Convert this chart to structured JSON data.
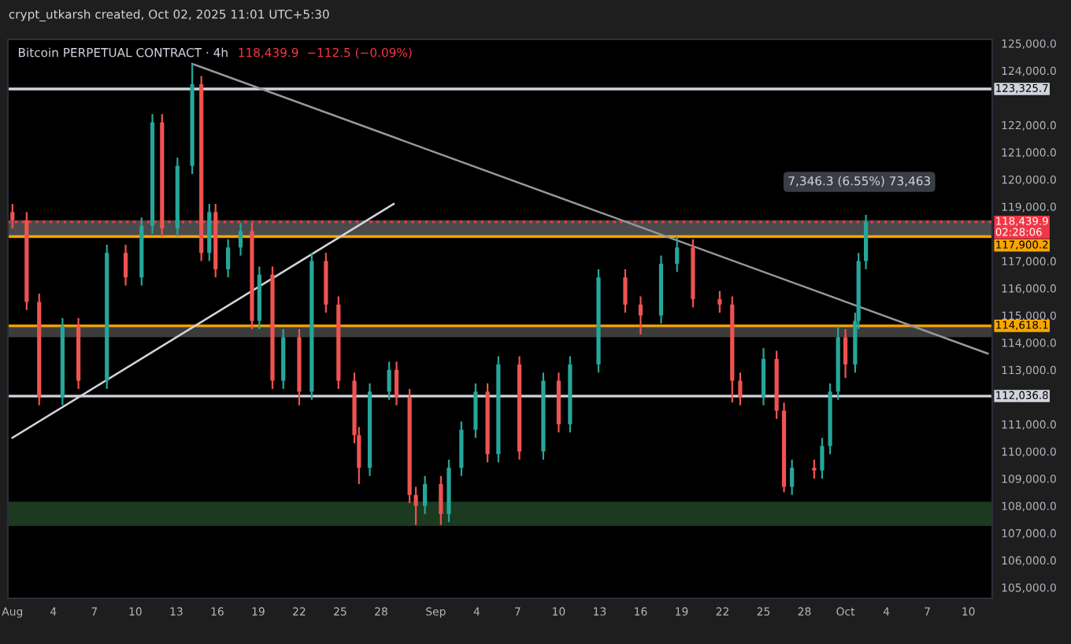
{
  "chart_data": {
    "type": "candlestick",
    "title": "Bitcoin PERPETUAL CONTRACT · 4h",
    "subtitle": "118,439.9  −112.5 (−0.09%)",
    "x": [
      "2025-08-01T00:00",
      "2025-08-02T01:00",
      "2025-08-02T23:00",
      "2025-08-04T16:00",
      "2025-08-05T20:00",
      "2025-08-07T22:00",
      "2025-08-09T07:00",
      "2025-08-10T11:00",
      "2025-08-11T06:00",
      "2025-08-11T23:00",
      "2025-08-13T02:00",
      "2025-08-14T04:00",
      "2025-08-14T20:00",
      "2025-08-15T10:00",
      "2025-08-15T21:00",
      "2025-08-16T19:00",
      "2025-08-17T17:00",
      "2025-08-18T13:00",
      "2025-08-19T02:00",
      "2025-08-20T01:00",
      "2025-08-20T20:00",
      "2025-08-22T00:00",
      "2025-08-22T22:00",
      "2025-08-23T23:00",
      "2025-08-24T21:00",
      "2025-08-26T01:00",
      "2025-08-26T09:00",
      "2025-08-27T04:00",
      "2025-08-28T14:00",
      "2025-08-29T03:00",
      "2025-08-30T02:00",
      "2025-08-30T13:00",
      "2025-08-31T05:00",
      "2025-09-01T09:00",
      "2025-09-01T23:00",
      "2025-09-02T21:00",
      "2025-09-03T22:00",
      "2025-09-04T19:00",
      "2025-09-05T14:00",
      "2025-09-07T03:00",
      "2025-09-08T21:00",
      "2025-09-10T00:00",
      "2025-09-10T20:00",
      "2025-09-12T22:00",
      "2025-09-14T21:00",
      "2025-09-16T00:00",
      "2025-09-17T12:00",
      "2025-09-18T16:00",
      "2025-09-19T20:00",
      "2025-09-21T19:00",
      "2025-09-22T17:00",
      "2025-09-23T07:00",
      "2025-09-25T00:00",
      "2025-09-25T23:00",
      "2025-09-26T12:00",
      "2025-09-27T02:00",
      "2025-09-28T17:00",
      "2025-09-29T07:00",
      "2025-09-29T21:00",
      "2025-09-30T11:00",
      "2025-10-01T00:00",
      "2025-10-01T17:00",
      "2025-10-01T23:00",
      "2025-10-02T12:00"
    ],
    "ohlc": [
      [
        118800,
        119100,
        118200,
        118500
      ],
      [
        118500,
        118800,
        115200,
        115500
      ],
      [
        115500,
        115800,
        111700,
        112000
      ],
      [
        112000,
        114900,
        111700,
        114600
      ],
      [
        114600,
        114900,
        112300,
        112600
      ],
      [
        112600,
        117600,
        112300,
        117300
      ],
      [
        117300,
        117600,
        116100,
        116400
      ],
      [
        116400,
        118600,
        116100,
        118300
      ],
      [
        118300,
        122400,
        118000,
        122100
      ],
      [
        122100,
        122400,
        117900,
        118200
      ],
      [
        118200,
        120800,
        117900,
        120500
      ],
      [
        120500,
        124250,
        120200,
        123500
      ],
      [
        123500,
        123800,
        117000,
        117300
      ],
      [
        117300,
        119100,
        117000,
        118800
      ],
      [
        118800,
        119100,
        116400,
        116700
      ],
      [
        116700,
        117800,
        116400,
        117500
      ],
      [
        117500,
        118400,
        117200,
        118100
      ],
      [
        118100,
        118400,
        114500,
        114800
      ],
      [
        114800,
        116800,
        114500,
        116500
      ],
      [
        116500,
        116800,
        112300,
        112600
      ],
      [
        112600,
        114500,
        112300,
        114200
      ],
      [
        114200,
        114500,
        111700,
        112200
      ],
      [
        112200,
        117300,
        111900,
        117000
      ],
      [
        117000,
        117300,
        115100,
        115400
      ],
      [
        115400,
        115700,
        112300,
        112600
      ],
      [
        112600,
        112900,
        110300,
        110600
      ],
      [
        110600,
        110900,
        108800,
        109400
      ],
      [
        109400,
        112500,
        109100,
        112200
      ],
      [
        112200,
        113300,
        111900,
        113000
      ],
      [
        113000,
        113300,
        111700,
        112000
      ],
      [
        112000,
        112300,
        108100,
        108400
      ],
      [
        108400,
        108700,
        107300,
        108000
      ],
      [
        108000,
        109100,
        107700,
        108800
      ],
      [
        108800,
        109100,
        107300,
        107700
      ],
      [
        107700,
        109700,
        107400,
        109400
      ],
      [
        109400,
        111100,
        109100,
        110800
      ],
      [
        110800,
        112500,
        110500,
        112200
      ],
      [
        112200,
        112500,
        109600,
        109900
      ],
      [
        109900,
        113500,
        109600,
        113200
      ],
      [
        113200,
        113500,
        109700,
        110000
      ],
      [
        110000,
        112900,
        109700,
        112600
      ],
      [
        112600,
        112900,
        110700,
        111000
      ],
      [
        111000,
        113500,
        110700,
        113200
      ],
      [
        113200,
        116700,
        112900,
        116400
      ],
      [
        116400,
        116700,
        115100,
        115400
      ],
      [
        115400,
        115700,
        114300,
        115000
      ],
      [
        115000,
        117200,
        114700,
        116900
      ],
      [
        116900,
        117900,
        116600,
        117500
      ],
      [
        117500,
        117800,
        115300,
        115600
      ],
      [
        115600,
        115900,
        115100,
        115400
      ],
      [
        115400,
        115700,
        111800,
        112600
      ],
      [
        112600,
        112900,
        111700,
        112000
      ],
      [
        112000,
        113800,
        111700,
        113400
      ],
      [
        113400,
        113700,
        111200,
        111500
      ],
      [
        111500,
        111800,
        108500,
        108700
      ],
      [
        108700,
        109700,
        108400,
        109400
      ],
      [
        109400,
        109700,
        109000,
        109300
      ],
      [
        109300,
        110500,
        109000,
        110200
      ],
      [
        110200,
        112500,
        109900,
        112200
      ],
      [
        112200,
        114600,
        111900,
        114200
      ],
      [
        114200,
        114500,
        112700,
        113200
      ],
      [
        113200,
        115100,
        112900,
        114800
      ],
      [
        114800,
        117300,
        114500,
        117000
      ],
      [
        117000,
        118700,
        116700,
        118439.9
      ]
    ],
    "colors": [
      "#ef5350",
      "#ef5350",
      "#ef5350",
      "#26a69a",
      "#ef5350",
      "#26a69a",
      "#ef5350",
      "#26a69a",
      "#26a69a",
      "#ef5350",
      "#26a69a",
      "#26a69a",
      "#ef5350",
      "#26a69a",
      "#ef5350",
      "#26a69a",
      "#26a69a",
      "#ef5350",
      "#26a69a",
      "#ef5350",
      "#26a69a",
      "#ef5350",
      "#26a69a",
      "#ef5350",
      "#ef5350",
      "#ef5350",
      "#ef5350",
      "#26a69a",
      "#26a69a",
      "#ef5350",
      "#ef5350",
      "#ef5350",
      "#26a69a",
      "#ef5350",
      "#26a69a",
      "#26a69a",
      "#26a69a",
      "#ef5350",
      "#26a69a",
      "#ef5350",
      "#26a69a",
      "#ef5350",
      "#26a69a",
      "#26a69a",
      "#ef5350",
      "#ef5350",
      "#26a69a",
      "#26a69a",
      "#ef5350",
      "#ef5350",
      "#ef5350",
      "#ef5350",
      "#26a69a",
      "#ef5350",
      "#ef5350",
      "#26a69a",
      "#ef5350",
      "#26a69a",
      "#26a69a",
      "#26a69a",
      "#ef5350",
      "#26a69a",
      "#26a69a",
      "#26a69a"
    ],
    "series": [
      {
        "type": "line",
        "x": [
          "2025-08-14T04:00",
          "2025-10-11T10:00"
        ],
        "values": [
          124250,
          113600
        ],
        "color": "#9598a1"
      },
      {
        "type": "line",
        "x": [
          "2025-08-01T00:00",
          "2025-08-28T22:00"
        ],
        "values": [
          110500,
          119100
        ],
        "color": "#d1d4dc"
      }
    ],
    "xlim": [
      "2025-07-31T16:00",
      "2025-10-11T18:00"
    ],
    "xticks": [
      {
        "value": "2025-08-01",
        "label": "Aug"
      },
      {
        "value": "2025-08-04",
        "label": "4"
      },
      {
        "value": "2025-08-07",
        "label": "7"
      },
      {
        "value": "2025-08-10",
        "label": "10"
      },
      {
        "value": "2025-08-13",
        "label": "13"
      },
      {
        "value": "2025-08-16",
        "label": "16"
      },
      {
        "value": "2025-08-19",
        "label": "19"
      },
      {
        "value": "2025-08-22",
        "label": "22"
      },
      {
        "value": "2025-08-25",
        "label": "25"
      },
      {
        "value": "2025-08-28",
        "label": "28"
      },
      {
        "value": "2025-09-01",
        "label": "Sep"
      },
      {
        "value": "2025-09-04",
        "label": "4"
      },
      {
        "value": "2025-09-07",
        "label": "7"
      },
      {
        "value": "2025-09-10",
        "label": "10"
      },
      {
        "value": "2025-09-13",
        "label": "13"
      },
      {
        "value": "2025-09-16",
        "label": "16"
      },
      {
        "value": "2025-09-19",
        "label": "19"
      },
      {
        "value": "2025-09-22",
        "label": "22"
      },
      {
        "value": "2025-09-25",
        "label": "25"
      },
      {
        "value": "2025-09-28",
        "label": "28"
      },
      {
        "value": "2025-10-01",
        "label": "Oct"
      },
      {
        "value": "2025-10-04",
        "label": "4"
      },
      {
        "value": "2025-10-07",
        "label": "7"
      },
      {
        "value": "2025-10-10",
        "label": "10"
      }
    ],
    "ylim": [
      104600,
      125150
    ],
    "yticks": [
      {
        "value": 105000,
        "label": "105,000.0"
      },
      {
        "value": 106000,
        "label": "106,000.0"
      },
      {
        "value": 107000,
        "label": "107,000.0"
      },
      {
        "value": 108000,
        "label": "108,000.0"
      },
      {
        "value": 109000,
        "label": "109,000.0"
      },
      {
        "value": 110000,
        "label": "110,000.0"
      },
      {
        "value": 111000,
        "label": "111,000.0"
      },
      {
        "value": 113000,
        "label": "113,000.0"
      },
      {
        "value": 114000,
        "label": "114,000.0"
      },
      {
        "value": 115000,
        "label": "115,000.0"
      },
      {
        "value": 116000,
        "label": "116,000.0"
      },
      {
        "value": 117000,
        "label": "117,000.0"
      },
      {
        "value": 119000,
        "label": "119,000.0"
      },
      {
        "value": 120000,
        "label": "120,000.0"
      },
      {
        "value": 121000,
        "label": "121,000.0"
      },
      {
        "value": 122000,
        "label": "122,000.0"
      },
      {
        "value": 124000,
        "label": "124,000.0"
      },
      {
        "value": 125000,
        "label": "125,000.0"
      }
    ],
    "ref_lines": [
      {
        "axis": "y",
        "value": 123325.7,
        "label": "123,325.7",
        "color": "#d1d4dc",
        "line_style": "solid"
      },
      {
        "axis": "y",
        "value": 118439.9,
        "label": "118,439.9",
        "color": "#f23645",
        "line_style": "dotted"
      },
      {
        "axis": "y",
        "value": 117900.2,
        "label": "117,900.2",
        "color": "#f7a600",
        "line_style": "solid"
      },
      {
        "axis": "y",
        "value": 114618.1,
        "label": "114,618.1",
        "color": "#f7a600",
        "line_style": "solid"
      },
      {
        "axis": "y",
        "value": 112036.8,
        "label": "112,036.8",
        "color": "#d1d4dc",
        "line_style": "solid"
      }
    ],
    "bands": [
      {
        "axis": "y",
        "from": 117900,
        "to": 118500,
        "color": "#4a4a4a"
      },
      {
        "axis": "y",
        "from": 114200,
        "to": 114618,
        "color": "#3c3c3c"
      },
      {
        "axis": "y",
        "from": 107260,
        "to": 108150,
        "color": "#1b3a1f"
      }
    ],
    "annotations": [
      "crypt_utkarsh created, Oct 02, 2025 11:01 UTC+5:30",
      "02:28:06",
      "7,346.3 (6.55%) 73,463"
    ],
    "grid": false,
    "legend": false
  }
}
